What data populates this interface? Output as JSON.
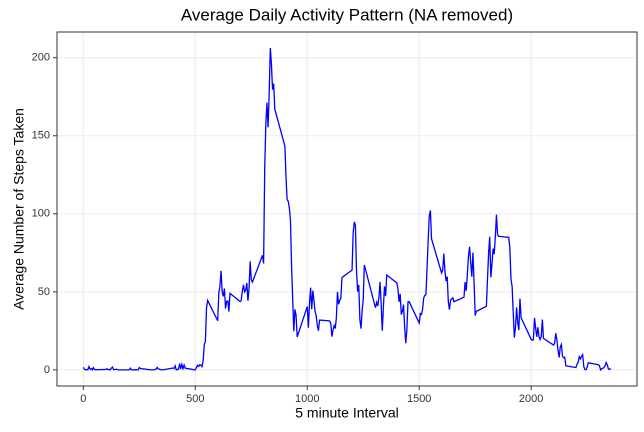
{
  "chart_data": {
    "type": "line",
    "title": "Average Daily Activity Pattern (NA removed)",
    "x_label": "5 minute Interval",
    "y_label": "Average Number of Steps Taken",
    "xlim": [
      -117.75,
      2472.75
    ],
    "xticks": [
      0,
      500,
      1000,
      1500,
      2000
    ],
    "ylim": [
      -10.31,
      216.48
    ],
    "yticks": [
      0,
      50,
      100,
      150,
      200
    ],
    "grid": true,
    "x": [
      0,
      5,
      10,
      15,
      20,
      25,
      30,
      35,
      40,
      45,
      50,
      55,
      100,
      105,
      110,
      115,
      120,
      125,
      130,
      135,
      140,
      145,
      150,
      155,
      200,
      205,
      210,
      215,
      220,
      225,
      230,
      235,
      240,
      245,
      250,
      255,
      300,
      305,
      310,
      315,
      320,
      325,
      330,
      335,
      340,
      345,
      350,
      355,
      400,
      405,
      410,
      415,
      420,
      425,
      430,
      435,
      440,
      445,
      450,
      455,
      500,
      505,
      510,
      515,
      520,
      525,
      530,
      535,
      540,
      545,
      550,
      555,
      600,
      605,
      610,
      615,
      620,
      625,
      630,
      635,
      640,
      645,
      650,
      655,
      700,
      705,
      710,
      715,
      720,
      725,
      730,
      735,
      740,
      745,
      750,
      755,
      800,
      805,
      810,
      815,
      820,
      825,
      830,
      835,
      840,
      845,
      850,
      855,
      900,
      905,
      910,
      915,
      920,
      925,
      930,
      935,
      940,
      945,
      950,
      955,
      1000,
      1005,
      1010,
      1015,
      1020,
      1025,
      1030,
      1035,
      1040,
      1045,
      1050,
      1055,
      1100,
      1105,
      1110,
      1115,
      1120,
      1125,
      1130,
      1135,
      1140,
      1145,
      1150,
      1155,
      1200,
      1205,
      1210,
      1215,
      1220,
      1225,
      1230,
      1235,
      1240,
      1245,
      1250,
      1255,
      1300,
      1305,
      1310,
      1315,
      1320,
      1325,
      1330,
      1335,
      1340,
      1345,
      1350,
      1355,
      1400,
      1405,
      1410,
      1415,
      1420,
      1425,
      1430,
      1435,
      1440,
      1445,
      1450,
      1455,
      1500,
      1505,
      1510,
      1515,
      1520,
      1525,
      1530,
      1535,
      1540,
      1545,
      1550,
      1555,
      1600,
      1605,
      1610,
      1615,
      1620,
      1625,
      1630,
      1635,
      1640,
      1645,
      1650,
      1655,
      1700,
      1705,
      1710,
      1715,
      1720,
      1725,
      1730,
      1735,
      1740,
      1745,
      1750,
      1755,
      1800,
      1805,
      1810,
      1815,
      1820,
      1825,
      1830,
      1835,
      1840,
      1845,
      1850,
      1855,
      1900,
      1905,
      1910,
      1915,
      1920,
      1925,
      1930,
      1935,
      1940,
      1945,
      1950,
      1955,
      2000,
      2005,
      2010,
      2015,
      2020,
      2025,
      2030,
      2035,
      2040,
      2045,
      2050,
      2055,
      2100,
      2105,
      2110,
      2115,
      2120,
      2125,
      2130,
      2135,
      2140,
      2145,
      2150,
      2155,
      2200,
      2205,
      2210,
      2215,
      2220,
      2225,
      2230,
      2235,
      2240,
      2245,
      2250,
      2255,
      2300,
      2305,
      2310,
      2315,
      2320,
      2325,
      2330,
      2335,
      2340,
      2345,
      2350,
      2355
    ],
    "series": [
      {
        "color": "#0000ff",
        "values": [
          1.7,
          0.3,
          0.1,
          0.2,
          0.1,
          2.1,
          0.5,
          0.9,
          0,
          1.5,
          0.3,
          0.1,
          0.3,
          0.7,
          0.2,
          0.3,
          0,
          1.1,
          1.8,
          0.2,
          0.2,
          0.4,
          0.3,
          0,
          0,
          0,
          1.1,
          0,
          0,
          0.1,
          0,
          0.2,
          0,
          0,
          1.5,
          0.9,
          0,
          0,
          0,
          0,
          0.2,
          0.6,
          1.6,
          0.6,
          0.5,
          0.1,
          0,
          0,
          1.2,
          0.9,
          2.6,
          0,
          0.3,
          0.4,
          4.1,
          0.7,
          3.5,
          0.8,
          3.1,
          1.1,
          0,
          1.6,
          3.0,
          2.2,
          3.3,
          3.0,
          2.1,
          6.1,
          16.0,
          18.3,
          39.5,
          44.5,
          31.5,
          49.3,
          53.8,
          63.5,
          50.0,
          47.1,
          52.2,
          39.3,
          44.0,
          44.2,
          37.4,
          49.0,
          43.8,
          44.4,
          50.5,
          54.5,
          49.9,
          51.0,
          55.7,
          44.3,
          52.3,
          69.5,
          57.8,
          56.2,
          73.4,
          68.2,
          129.4,
          157.5,
          171.2,
          155.4,
          177.3,
          206.2,
          195.9,
          179.6,
          183.4,
          167.0,
          143.5,
          124.0,
          109.1,
          108.1,
          103.7,
          96.0,
          66.2,
          45.2,
          24.8,
          38.8,
          35.0,
          21.1,
          40.6,
          27.0,
          42.4,
          52.7,
          38.9,
          50.8,
          44.3,
          37.4,
          34.7,
          28.3,
          25.1,
          31.9,
          31.4,
          29.7,
          21.3,
          25.5,
          28.4,
          26.5,
          33.4,
          50.0,
          42.0,
          44.6,
          46.0,
          59.2,
          63.9,
          87.7,
          94.8,
          92.8,
          63.4,
          50.2,
          54.5,
          32.4,
          26.5,
          37.7,
          45.1,
          67.3,
          42.3,
          39.9,
          43.3,
          41.0,
          46.2,
          56.4,
          42.8,
          25.1,
          40.0,
          53.5,
          47.3,
          60.8,
          55.8,
          52.0,
          43.6,
          48.7,
          35.5,
          37.5,
          41.8,
          27.5,
          17.1,
          26.1,
          43.6,
          43.8,
          30.0,
          36.1,
          35.5,
          38.8,
          46.0,
          47.8,
          48.1,
          65.3,
          82.9,
          98.7,
          102.1,
          84.0,
          62.1,
          64.1,
          74.5,
          63.2,
          56.9,
          59.8,
          43.9,
          38.6,
          44.7,
          45.5,
          46.2,
          43.7,
          46.6,
          56.3,
          50.7,
          61.2,
          72.7,
          78.9,
          68.9,
          59.7,
          75.1,
          56.5,
          34.8,
          37.5,
          40.7,
          58.0,
          74.7,
          85.3,
          59.3,
          67.8,
          77.7,
          74.2,
          85.3,
          99.5,
          86.6,
          85.6,
          84.9,
          77.8,
          58.0,
          53.4,
          36.3,
          20.7,
          27.4,
          40.0,
          30.2,
          25.5,
          45.7,
          33.5,
          19.6,
          19.0,
          19.3,
          33.3,
          26.8,
          21.2,
          27.3,
          21.3,
          19.5,
          21.3,
          32.3,
          20.2,
          15.9,
          17.2,
          23.5,
          19.2,
          12.5,
          8.0,
          14.7,
          16.3,
          8.7,
          7.8,
          8.1,
          2.6,
          1.5,
          3.7,
          4.8,
          8.5,
          7.1,
          8.7,
          9.8,
          2.2,
          0.3,
          0.1,
          1.6,
          4.6,
          3.3,
          2.8,
          0,
          0.8,
          1.0,
          1.6,
          2.6,
          4.7,
          3.3,
          0.6,
          0.2,
          1.1
        ]
      }
    ]
  }
}
